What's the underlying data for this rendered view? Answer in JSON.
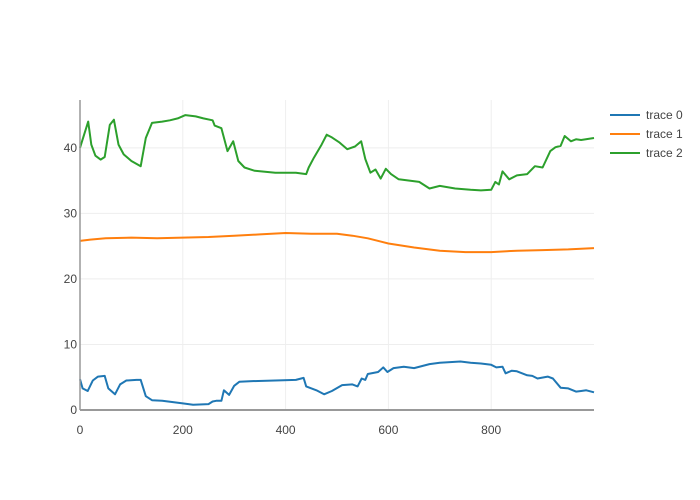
{
  "chart_data": {
    "type": "line",
    "title": "",
    "xlabel": "",
    "ylabel": "",
    "xlim": [
      0,
      1000
    ],
    "ylim": [
      0,
      47.3
    ],
    "grid": true,
    "legend_position": "top-right",
    "x_ticks": [
      0,
      200,
      400,
      600,
      800
    ],
    "y_ticks": [
      0,
      10,
      20,
      30,
      40
    ],
    "series": [
      {
        "name": "trace 0",
        "color": "#1f77b4",
        "x": [
          0,
          5,
          15,
          25,
          35,
          48,
          55,
          68,
          78,
          90,
          110,
          118,
          128,
          140,
          160,
          200,
          220,
          250,
          258,
          265,
          275,
          280,
          290,
          300,
          310,
          330,
          380,
          420,
          435,
          440,
          460,
          475,
          490,
          510,
          530,
          540,
          548,
          555,
          560,
          580,
          590,
          598,
          610,
          630,
          650,
          680,
          700,
          740,
          760,
          780,
          800,
          810,
          822,
          828,
          840,
          850,
          870,
          880,
          890,
          910,
          920,
          935,
          950,
          965,
          975,
          985,
          1000
        ],
        "y": [
          4.7,
          3.3,
          2.9,
          4.5,
          5.1,
          5.2,
          3.3,
          2.4,
          3.9,
          4.5,
          4.6,
          4.6,
          2.1,
          1.5,
          1.4,
          1.0,
          0.8,
          0.9,
          1.3,
          1.4,
          1.4,
          3.0,
          2.3,
          3.7,
          4.3,
          4.4,
          4.5,
          4.6,
          4.9,
          3.6,
          3.0,
          2.4,
          2.9,
          3.8,
          3.9,
          3.6,
          4.8,
          4.6,
          5.5,
          5.8,
          6.5,
          5.8,
          6.4,
          6.6,
          6.4,
          7.0,
          7.2,
          7.4,
          7.2,
          7.1,
          6.9,
          6.5,
          6.6,
          5.6,
          6.0,
          5.9,
          5.3,
          5.2,
          4.8,
          5.1,
          4.8,
          3.4,
          3.3,
          2.8,
          2.9,
          3.0,
          2.7
        ]
      },
      {
        "name": "trace 1",
        "color": "#ff7f0e",
        "x": [
          0,
          20,
          50,
          100,
          150,
          200,
          250,
          300,
          350,
          400,
          450,
          500,
          530,
          560,
          600,
          650,
          700,
          750,
          800,
          850,
          900,
          950,
          1000
        ],
        "y": [
          25.8,
          26.0,
          26.2,
          26.3,
          26.2,
          26.3,
          26.4,
          26.6,
          26.8,
          27.0,
          26.9,
          26.9,
          26.6,
          26.2,
          25.4,
          24.8,
          24.3,
          24.1,
          24.1,
          24.3,
          24.4,
          24.5,
          24.7
        ]
      },
      {
        "name": "trace 2",
        "color": "#2ca02c",
        "x": [
          0,
          8,
          16,
          22,
          30,
          40,
          48,
          58,
          66,
          75,
          85,
          100,
          118,
          128,
          140,
          160,
          175,
          190,
          205,
          225,
          240,
          258,
          262,
          275,
          287,
          298,
          308,
          320,
          340,
          380,
          420,
          440,
          445,
          455,
          470,
          480,
          490,
          505,
          520,
          535,
          547,
          555,
          565,
          575,
          585,
          595,
          605,
          620,
          660,
          680,
          700,
          730,
          760,
          780,
          800,
          808,
          815,
          822,
          835,
          850,
          870,
          885,
          900,
          915,
          925,
          935,
          943,
          955,
          965,
          975,
          1000
        ],
        "y": [
          40,
          42,
          44,
          40.5,
          38.8,
          38.2,
          38.6,
          43.5,
          44.3,
          40.5,
          39,
          38,
          37.2,
          41.5,
          43.8,
          44,
          44.2,
          44.5,
          45,
          44.8,
          44.5,
          44.2,
          43.4,
          43,
          39.5,
          41,
          38,
          37,
          36.5,
          36.2,
          36.2,
          36,
          37,
          38.5,
          40.5,
          42,
          41.6,
          40.8,
          39.8,
          40.2,
          41,
          38.3,
          36.2,
          36.7,
          35.3,
          36.8,
          36,
          35.2,
          34.8,
          33.8,
          34.2,
          33.8,
          33.6,
          33.5,
          33.6,
          34.8,
          34.4,
          36.4,
          35.2,
          35.8,
          36,
          37.2,
          37,
          39.5,
          40.1,
          40.3,
          41.8,
          41,
          41.3,
          41.2,
          41.5
        ]
      }
    ]
  }
}
